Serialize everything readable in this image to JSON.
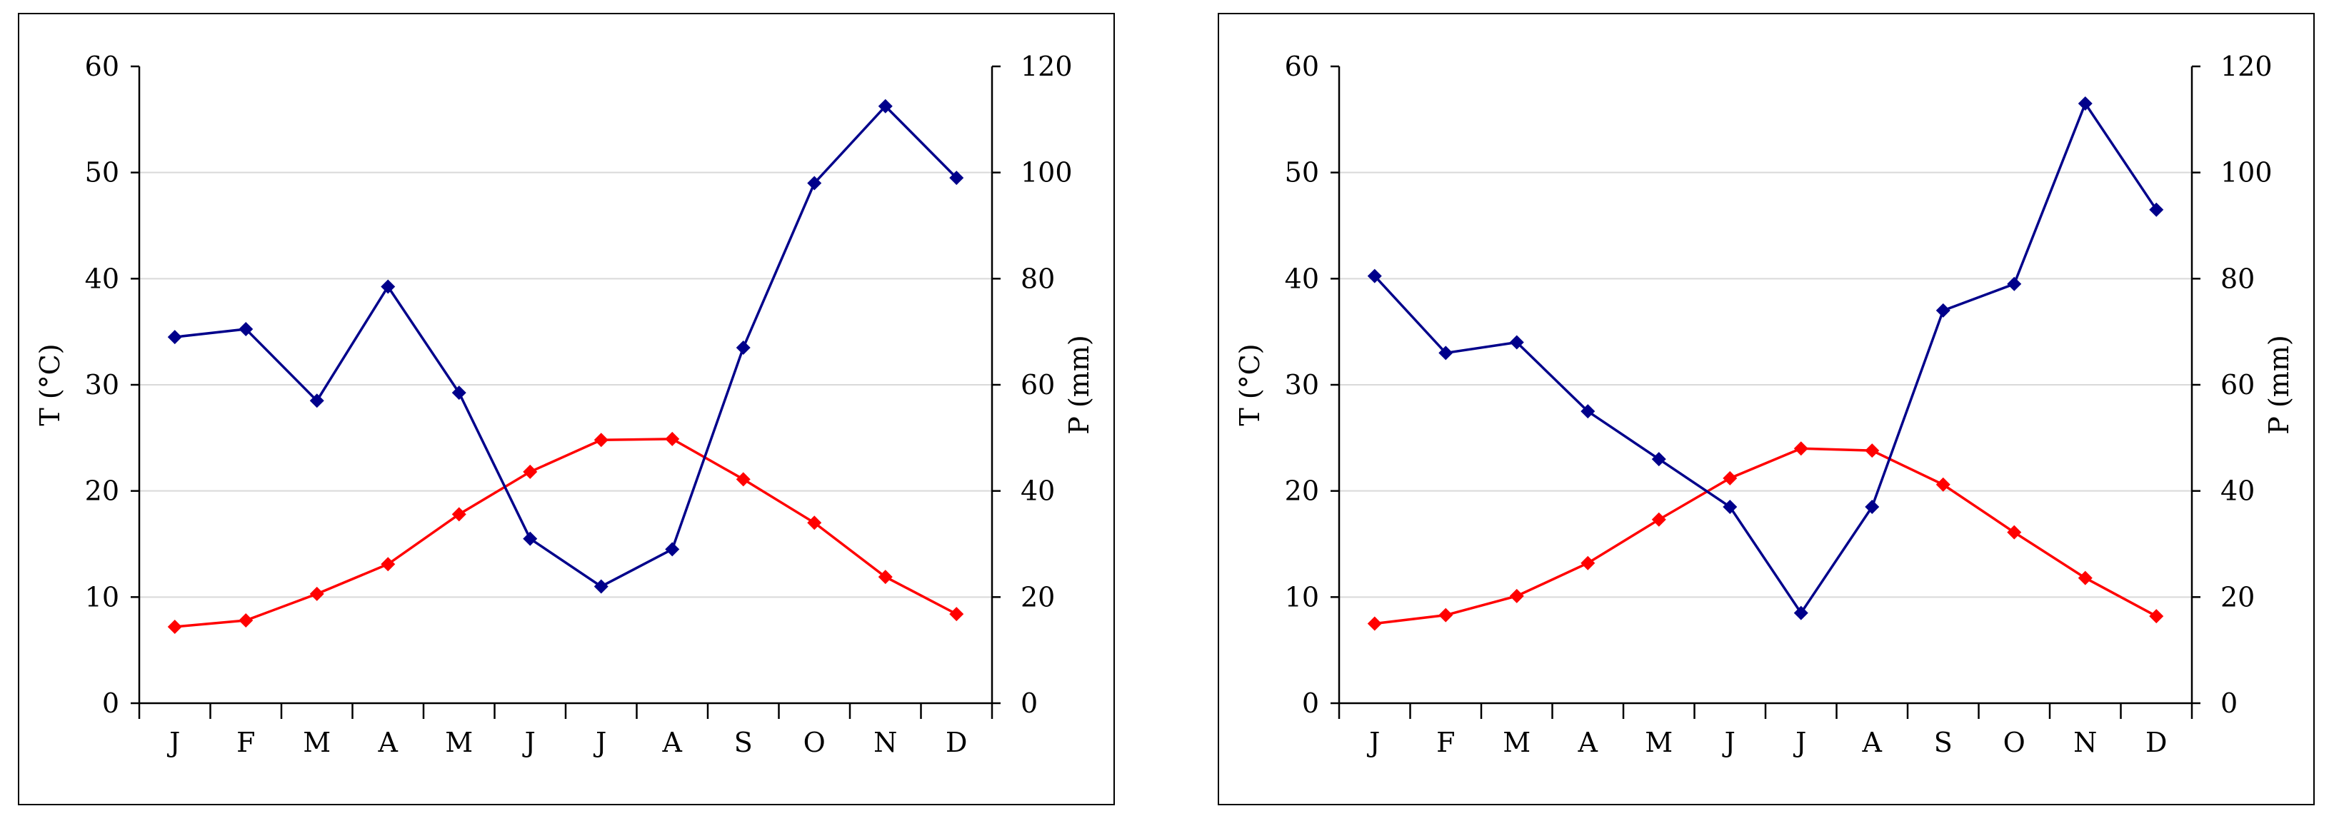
{
  "colors": {
    "temperature": "#ff0000",
    "precipitation": "#00008b"
  },
  "chart_data": [
    {
      "type": "line",
      "categories": [
        "J",
        "F",
        "M",
        "A",
        "M",
        "J",
        "J",
        "A",
        "S",
        "O",
        "N",
        "D"
      ],
      "ylabel": "T (°C)",
      "y2label": "P (mm)",
      "ylim": [
        0,
        60
      ],
      "y2lim": [
        0,
        120
      ],
      "yticks": [
        "0",
        "10",
        "20",
        "30",
        "40",
        "50",
        "60"
      ],
      "y2ticks": [
        "0",
        "20",
        "40",
        "60",
        "80",
        "100",
        "120"
      ],
      "grid": true,
      "series": [
        {
          "axis": "left",
          "color": "#ff0000",
          "marker": "diamond",
          "values": [
            7.2,
            7.8,
            10.3,
            13.1,
            17.8,
            21.8,
            24.8,
            24.9,
            21.1,
            17.0,
            11.9,
            8.4
          ]
        },
        {
          "axis": "right",
          "color": "#00008b",
          "marker": "diamond",
          "values": [
            69,
            70.5,
            57,
            78.5,
            58.5,
            31,
            22,
            29,
            67,
            98,
            112.5,
            99
          ]
        }
      ]
    },
    {
      "type": "line",
      "categories": [
        "J",
        "F",
        "M",
        "A",
        "M",
        "J",
        "J",
        "A",
        "S",
        "O",
        "N",
        "D"
      ],
      "ylabel": "T (°C)",
      "y2label": "P (mm)",
      "ylim": [
        0,
        60
      ],
      "y2lim": [
        0,
        120
      ],
      "yticks": [
        "0",
        "10",
        "20",
        "30",
        "40",
        "50",
        "60"
      ],
      "y2ticks": [
        "0",
        "20",
        "40",
        "60",
        "80",
        "100",
        "120"
      ],
      "grid": true,
      "series": [
        {
          "axis": "left",
          "color": "#ff0000",
          "marker": "diamond",
          "values": [
            7.5,
            8.3,
            10.1,
            13.2,
            17.3,
            21.2,
            24.0,
            23.8,
            20.6,
            16.1,
            11.8,
            8.2
          ]
        },
        {
          "axis": "right",
          "color": "#00008b",
          "marker": "diamond",
          "values": [
            80.5,
            66,
            68,
            55,
            46,
            37,
            17,
            37,
            74,
            79,
            113,
            93
          ]
        }
      ]
    }
  ]
}
